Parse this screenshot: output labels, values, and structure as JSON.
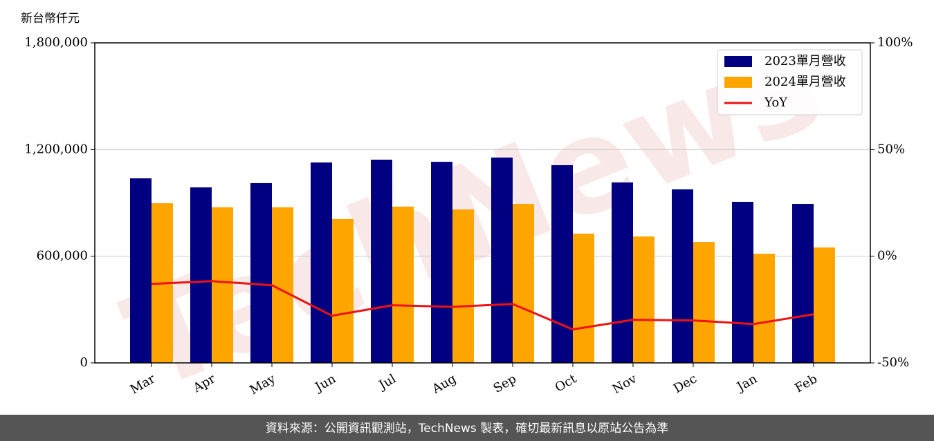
{
  "chart_data": {
    "type": "bar_line",
    "y_unit_label": "新台幣仟元",
    "watermark": "TechNews",
    "footer": "資料來源：公開資訊觀測站，TechNews 製表，確切最新訊息以原站公告為準",
    "categories": [
      "Mar",
      "Apr",
      "May",
      "Jun",
      "Jul",
      "Aug",
      "Sep",
      "Oct",
      "Nov",
      "Dec",
      "Jan",
      "Feb"
    ],
    "series": [
      {
        "name": "2023單月營收",
        "color": "#000080",
        "type": "bar",
        "values": [
          1038000,
          987000,
          1011000,
          1127000,
          1143000,
          1131000,
          1155000,
          1112000,
          1015000,
          976000,
          906000,
          894000
        ]
      },
      {
        "name": "2024單月營收",
        "color": "#ffa500",
        "type": "bar",
        "values": [
          898000,
          875000,
          875000,
          809000,
          879000,
          863000,
          894000,
          727000,
          711000,
          680000,
          614000,
          649000
        ]
      },
      {
        "name": "YoY",
        "color": "#ee1111",
        "type": "line",
        "axis": "y2",
        "values": [
          -13.0,
          -11.7,
          -13.6,
          -27.9,
          -23.0,
          -23.7,
          -22.4,
          -34.3,
          -29.8,
          -30.1,
          -31.8,
          -27.2
        ]
      }
    ],
    "ylim": [
      0,
      1800000
    ],
    "yticks": [
      {
        "value": 0,
        "label": "0"
      },
      {
        "value": 600000,
        "label": "600,000"
      },
      {
        "value": 1200000,
        "label": "1,200,000"
      },
      {
        "value": 1800000,
        "label": "1,800,000"
      }
    ],
    "y2lim": [
      -50,
      100
    ],
    "y2ticks": [
      {
        "value": -50,
        "label": "-50%"
      },
      {
        "value": 0,
        "label": "0%"
      },
      {
        "value": 50,
        "label": "50%"
      },
      {
        "value": 100,
        "label": "100%"
      }
    ],
    "grid": true,
    "legend": "upper right"
  }
}
